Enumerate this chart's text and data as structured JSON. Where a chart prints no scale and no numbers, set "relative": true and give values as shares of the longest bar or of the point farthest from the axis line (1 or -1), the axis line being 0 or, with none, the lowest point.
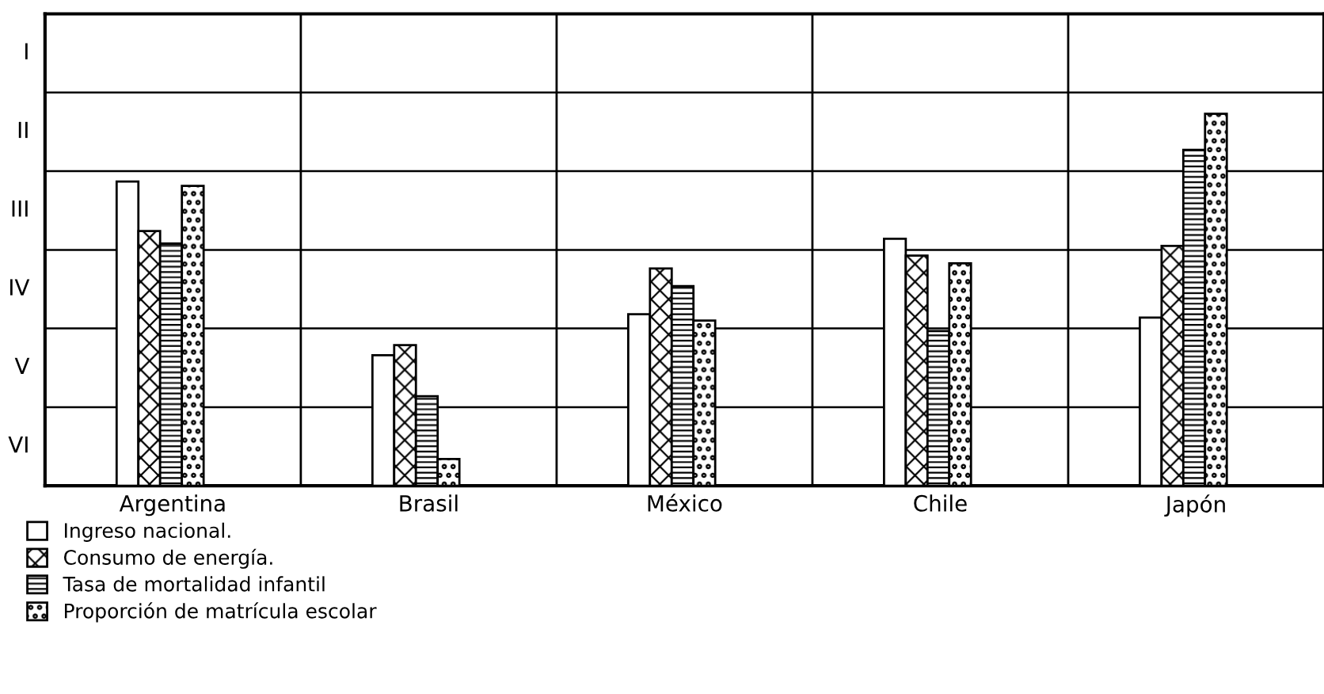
{
  "chart_data": {
    "type": "bar",
    "categories": [
      "Argentina",
      "Brasil",
      "México",
      "Chile",
      "Japón"
    ],
    "relative": true,
    "series": [
      {
        "name": "Ingreso nacional.",
        "color": "#000000",
        "values": [
          0.818,
          0.351,
          0.461,
          0.664,
          0.452
        ]
      },
      {
        "name": "Consumo de energía.",
        "color": "#000000",
        "values": [
          0.685,
          0.378,
          0.584,
          0.619,
          0.645
        ]
      },
      {
        "name": "Tasa de mortalidad infantil",
        "color": "#000000",
        "values": [
          0.651,
          0.241,
          0.537,
          0.416,
          0.903
        ]
      },
      {
        "name": "Proporción de matrícula escolar",
        "color": "#000000",
        "values": [
          0.806,
          0.072,
          0.444,
          0.598,
          1.0
        ]
      }
    ],
    "annotations": [
      "I",
      "II",
      "III",
      "IV",
      "V",
      "VI"
    ],
    "ref_lines": [
      {
        "axis": "y",
        "value": 0.211,
        "color": "#000000"
      },
      {
        "axis": "y",
        "value": 0.423,
        "color": "#000000"
      },
      {
        "axis": "y",
        "value": 0.634,
        "color": "#000000"
      },
      {
        "axis": "y",
        "value": 0.846,
        "color": "#000000"
      },
      {
        "axis": "y",
        "value": 1.057,
        "color": "#000000"
      }
    ],
    "grid": "x",
    "legend": "bottom left"
  }
}
